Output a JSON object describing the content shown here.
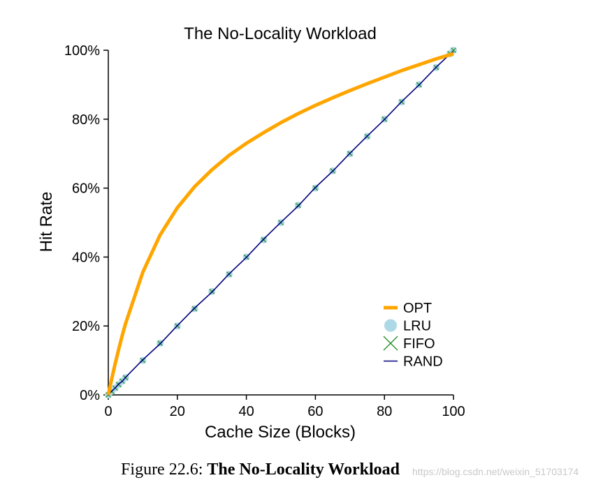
{
  "chart_data": {
    "type": "line",
    "title": "The No-Locality Workload",
    "xlabel": "Cache Size (Blocks)",
    "ylabel": "Hit Rate",
    "xlim": [
      0,
      100
    ],
    "ylim": [
      0,
      100
    ],
    "xticks": [
      "0",
      "20",
      "40",
      "60",
      "80",
      "100"
    ],
    "yticks": [
      "0%",
      "20%",
      "40%",
      "60%",
      "80%",
      "100%"
    ],
    "grid": false,
    "legend_position": "bottom-right",
    "x": [
      0,
      1,
      2,
      3,
      4,
      5,
      10,
      15,
      20,
      25,
      30,
      35,
      40,
      45,
      50,
      55,
      60,
      65,
      70,
      75,
      80,
      85,
      90,
      95,
      99,
      100
    ],
    "series": [
      {
        "name": "OPT",
        "color": "#ffa500",
        "marker": "line",
        "values": [
          0,
          4.7,
          9.1,
          13.2,
          17.1,
          20.7,
          35.6,
          46.4,
          54.3,
          60.4,
          65.3,
          69.5,
          73.0,
          76.1,
          79.0,
          81.6,
          84.0,
          86.2,
          88.3,
          90.3,
          92.2,
          94.1,
          95.8,
          97.5,
          98.7,
          99.0
        ]
      },
      {
        "name": "LRU",
        "color": "#add8e6",
        "marker": "circle",
        "values": [
          0,
          1,
          2,
          3,
          4,
          5,
          10,
          15,
          20,
          25,
          30,
          35,
          40,
          45,
          50,
          55,
          60,
          65,
          70,
          75,
          80,
          85,
          90,
          95,
          99,
          100
        ]
      },
      {
        "name": "FIFO",
        "color": "#228b22",
        "marker": "x",
        "values": [
          0,
          1,
          2,
          3,
          4,
          5,
          10,
          15,
          20,
          25,
          30,
          35,
          40,
          45,
          50,
          55,
          60,
          65,
          70,
          75,
          80,
          85,
          90,
          95,
          99,
          100
        ]
      },
      {
        "name": "RAND",
        "color": "#00007a",
        "marker": "line",
        "values": [
          0,
          1.1,
          2.0,
          3.2,
          3.9,
          5.1,
          10.2,
          14.8,
          20.1,
          25.2,
          29.8,
          35.1,
          39.9,
          45.2,
          50.1,
          54.8,
          60.2,
          64.9,
          70.1,
          75.1,
          79.9,
          85.1,
          89.9,
          95.1,
          98.9,
          99.6
        ]
      }
    ]
  },
  "caption": {
    "prefix": "Figure 22.6: ",
    "title": "The No-Locality Workload"
  },
  "watermark": "https://blog.csdn.net/weixin_51703174"
}
